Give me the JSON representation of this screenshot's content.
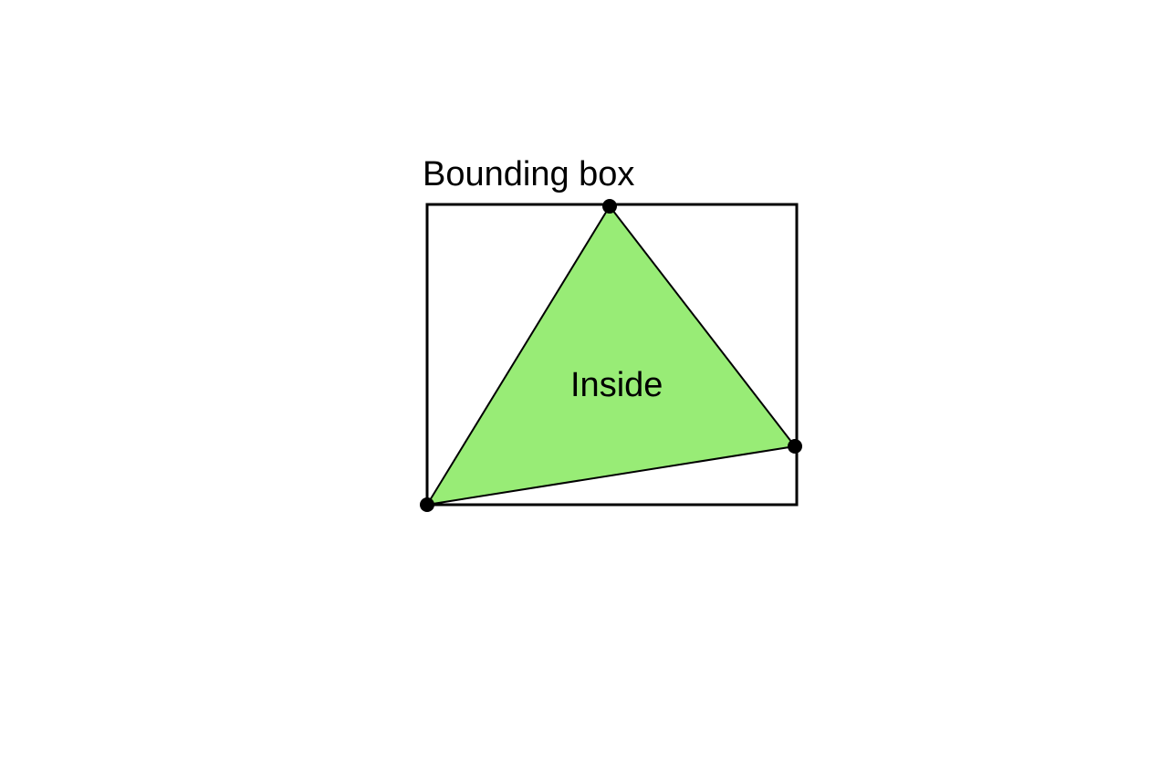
{
  "diagram": {
    "box_label": "Bounding box",
    "inside_label": "Inside"
  },
  "colors": {
    "triangle_fill": "#98ec76",
    "stroke": "#000000",
    "background": "#ffffff"
  }
}
